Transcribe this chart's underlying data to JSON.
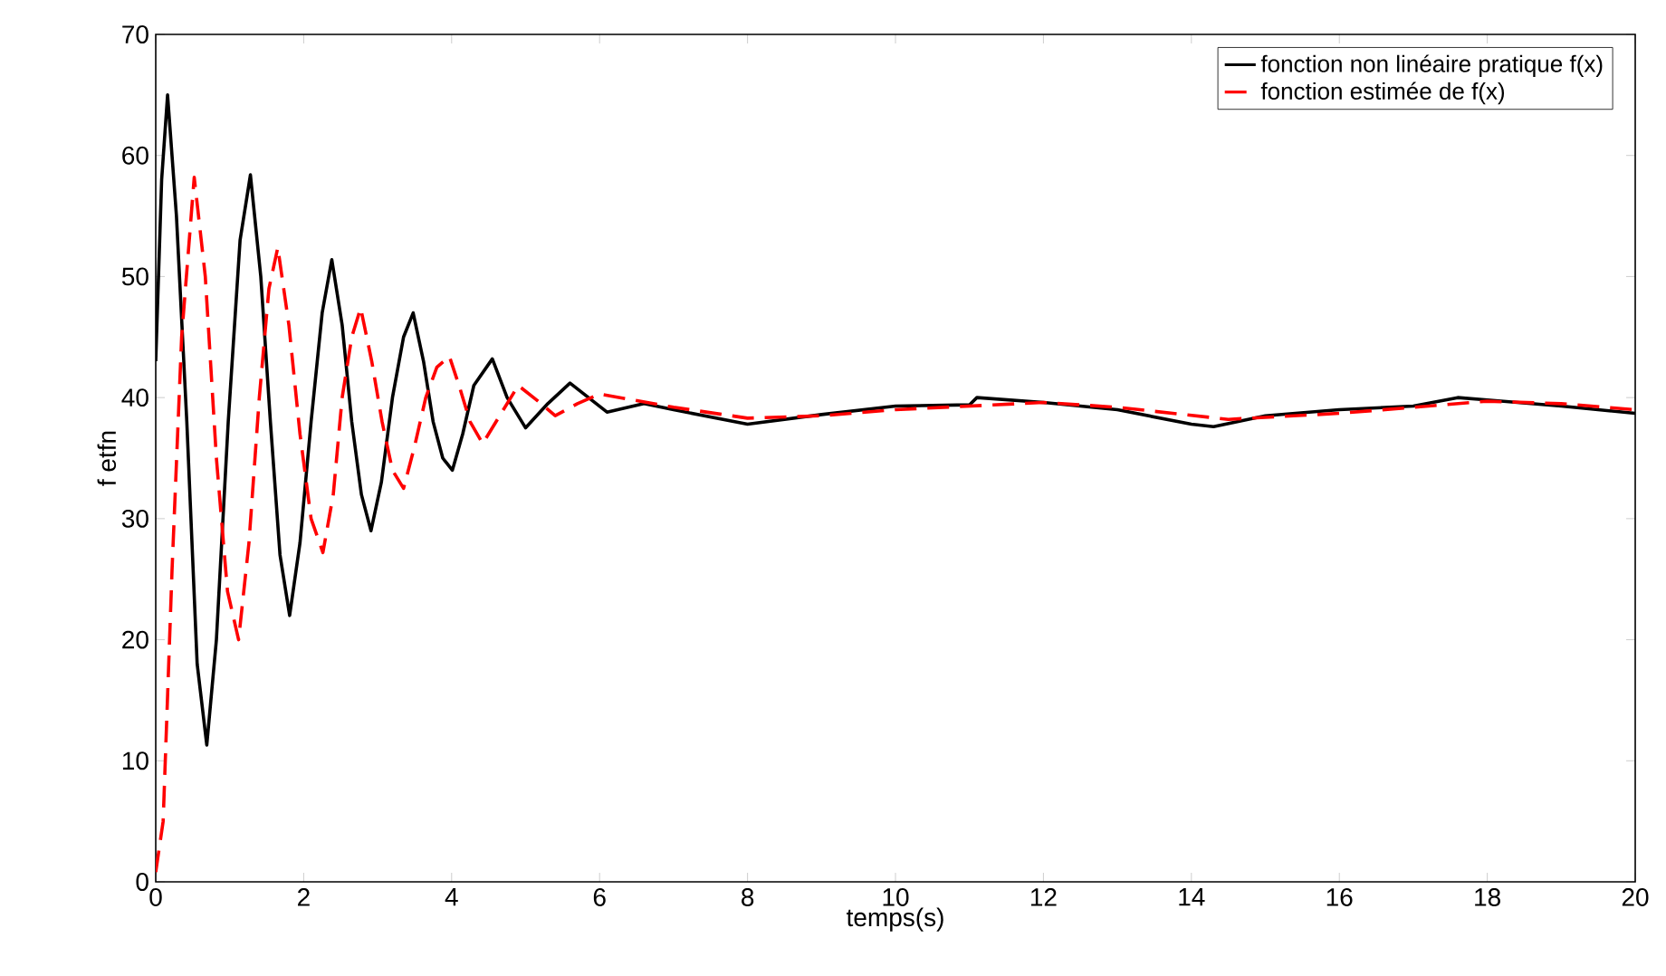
{
  "chart_data": {
    "type": "line",
    "xlabel": "temps(s)",
    "ylabel": "f etfn",
    "xlim": [
      0,
      20
    ],
    "ylim": [
      0,
      70
    ],
    "xticks": [
      0,
      2,
      4,
      6,
      8,
      10,
      12,
      14,
      16,
      18,
      20
    ],
    "yticks": [
      0,
      10,
      20,
      30,
      40,
      50,
      60,
      70
    ],
    "grid": false,
    "legend": "top right",
    "marker": "none",
    "series": [
      {
        "name": "fonction non linéaire pratique f(x)",
        "color": "#000000",
        "line_style": "solid",
        "x": [
          0,
          0.08,
          0.16,
          0.28,
          0.42,
          0.56,
          0.69,
          0.82,
          0.98,
          1.14,
          1.28,
          1.42,
          1.55,
          1.68,
          1.81,
          1.95,
          2.1,
          2.25,
          2.38,
          2.52,
          2.65,
          2.78,
          2.91,
          3.05,
          3.2,
          3.35,
          3.48,
          3.62,
          3.75,
          3.88,
          4.01,
          4.15,
          4.3,
          4.55,
          4.75,
          5.0,
          5.3,
          5.6,
          5.85,
          6.1,
          6.6,
          7,
          8,
          9,
          10,
          11,
          11.1,
          12,
          13,
          14,
          14.3,
          15,
          16,
          17,
          17.6,
          18,
          19,
          20
        ],
        "values": [
          43,
          58,
          65,
          55,
          38,
          18,
          11.3,
          20,
          38,
          53,
          58.4,
          50,
          38,
          27,
          22,
          28,
          38,
          47,
          51.4,
          46,
          38,
          32,
          29,
          33,
          40,
          45,
          47,
          43,
          38,
          35,
          34,
          37,
          41,
          43.2,
          40,
          37.5,
          39.5,
          41.2,
          40,
          38.8,
          39.5,
          39,
          37.8,
          38.6,
          39.3,
          39.4,
          40,
          39.6,
          39,
          37.8,
          37.6,
          38.5,
          39,
          39.3,
          40,
          39.8,
          39.3,
          38.7
        ]
      },
      {
        "name": "fonction estimée de f(x)",
        "color": "#ff0000",
        "line_style": "dashed",
        "x": [
          0,
          0.1,
          0.22,
          0.35,
          0.52,
          0.67,
          0.82,
          0.97,
          1.12,
          1.26,
          1.4,
          1.53,
          1.65,
          1.8,
          1.95,
          2.1,
          2.26,
          2.4,
          2.52,
          2.65,
          2.77,
          2.92,
          3.06,
          3.2,
          3.35,
          3.5,
          3.65,
          3.8,
          3.97,
          4.1,
          4.25,
          4.42,
          4.65,
          4.9,
          5.15,
          5.4,
          5.7,
          6,
          7,
          8,
          9,
          10,
          12,
          13,
          14.5,
          16,
          18,
          19,
          20
        ],
        "values": [
          0.8,
          5,
          25.7,
          45,
          58.2,
          50,
          35,
          24,
          20,
          28,
          40,
          49,
          52.4,
          46,
          37,
          30,
          27.2,
          32,
          40,
          45,
          47.4,
          43,
          38,
          34,
          32.5,
          36,
          40,
          42.5,
          43.4,
          41,
          38,
          36.2,
          38.5,
          41,
          39.8,
          38.5,
          39.5,
          40.3,
          39.2,
          38.3,
          38.5,
          39,
          39.6,
          39.2,
          38.2,
          38.7,
          39.7,
          39.5,
          39
        ]
      }
    ]
  }
}
